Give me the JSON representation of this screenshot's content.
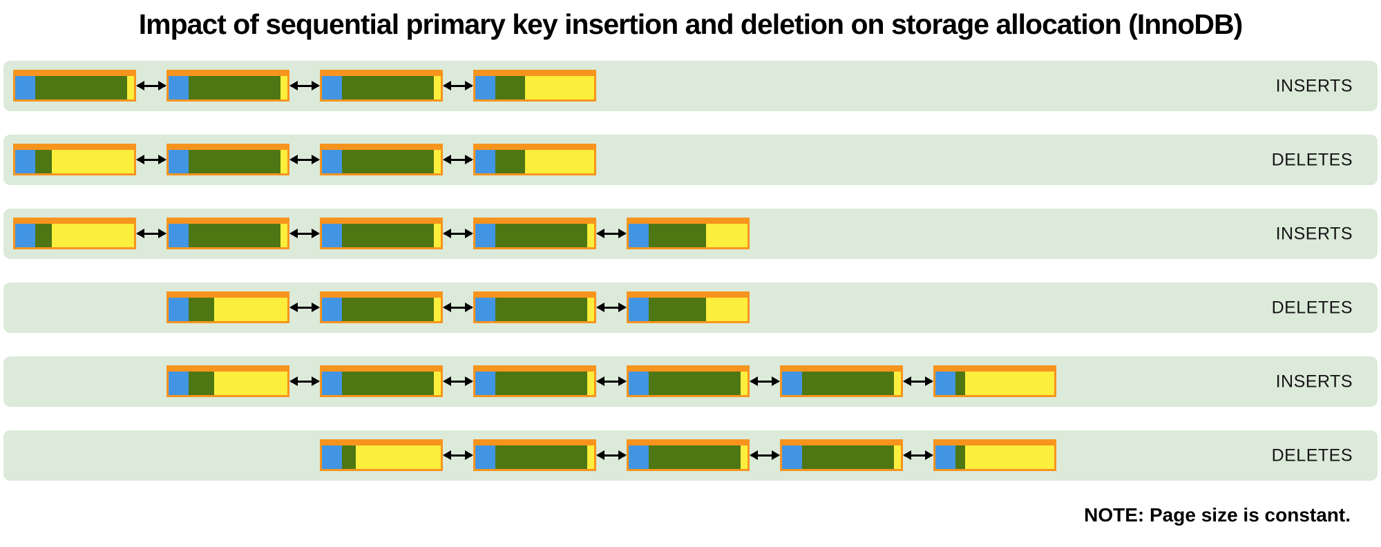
{
  "title": "Impact of sequential primary key insertion and deletion on storage allocation (InnoDB)",
  "note": "NOTE: Page size is constant.",
  "colors": {
    "page_border": "#f7941e",
    "page_header_block": "#4295e2",
    "used_space": "#4e7613",
    "free_space": "#fcee3c",
    "row_background": "#dceada",
    "arrow": "#000000"
  },
  "rows": [
    {
      "label": "INSERTS",
      "pages": [
        {
          "slot": 0,
          "used_pct": 93
        },
        {
          "slot": 1,
          "used_pct": 93
        },
        {
          "slot": 2,
          "used_pct": 93
        },
        {
          "slot": 3,
          "used_pct": 30
        }
      ]
    },
    {
      "label": "DELETES",
      "pages": [
        {
          "slot": 0,
          "used_pct": 17
        },
        {
          "slot": 1,
          "used_pct": 93
        },
        {
          "slot": 2,
          "used_pct": 93
        },
        {
          "slot": 3,
          "used_pct": 30
        }
      ]
    },
    {
      "label": "INSERTS",
      "pages": [
        {
          "slot": 0,
          "used_pct": 17
        },
        {
          "slot": 1,
          "used_pct": 93
        },
        {
          "slot": 2,
          "used_pct": 93
        },
        {
          "slot": 3,
          "used_pct": 93
        },
        {
          "slot": 4,
          "used_pct": 58
        }
      ]
    },
    {
      "label": "DELETES",
      "pages": [
        {
          "slot": 1,
          "used_pct": 26
        },
        {
          "slot": 2,
          "used_pct": 93
        },
        {
          "slot": 3,
          "used_pct": 93
        },
        {
          "slot": 4,
          "used_pct": 58
        }
      ]
    },
    {
      "label": "INSERTS",
      "pages": [
        {
          "slot": 1,
          "used_pct": 26
        },
        {
          "slot": 2,
          "used_pct": 93
        },
        {
          "slot": 3,
          "used_pct": 93
        },
        {
          "slot": 4,
          "used_pct": 93
        },
        {
          "slot": 5,
          "used_pct": 93
        },
        {
          "slot": 6,
          "used_pct": 10
        }
      ]
    },
    {
      "label": "DELETES",
      "pages": [
        {
          "slot": 2,
          "used_pct": 14
        },
        {
          "slot": 3,
          "used_pct": 93
        },
        {
          "slot": 4,
          "used_pct": 93
        },
        {
          "slot": 5,
          "used_pct": 93
        },
        {
          "slot": 6,
          "used_pct": 10
        }
      ]
    }
  ]
}
